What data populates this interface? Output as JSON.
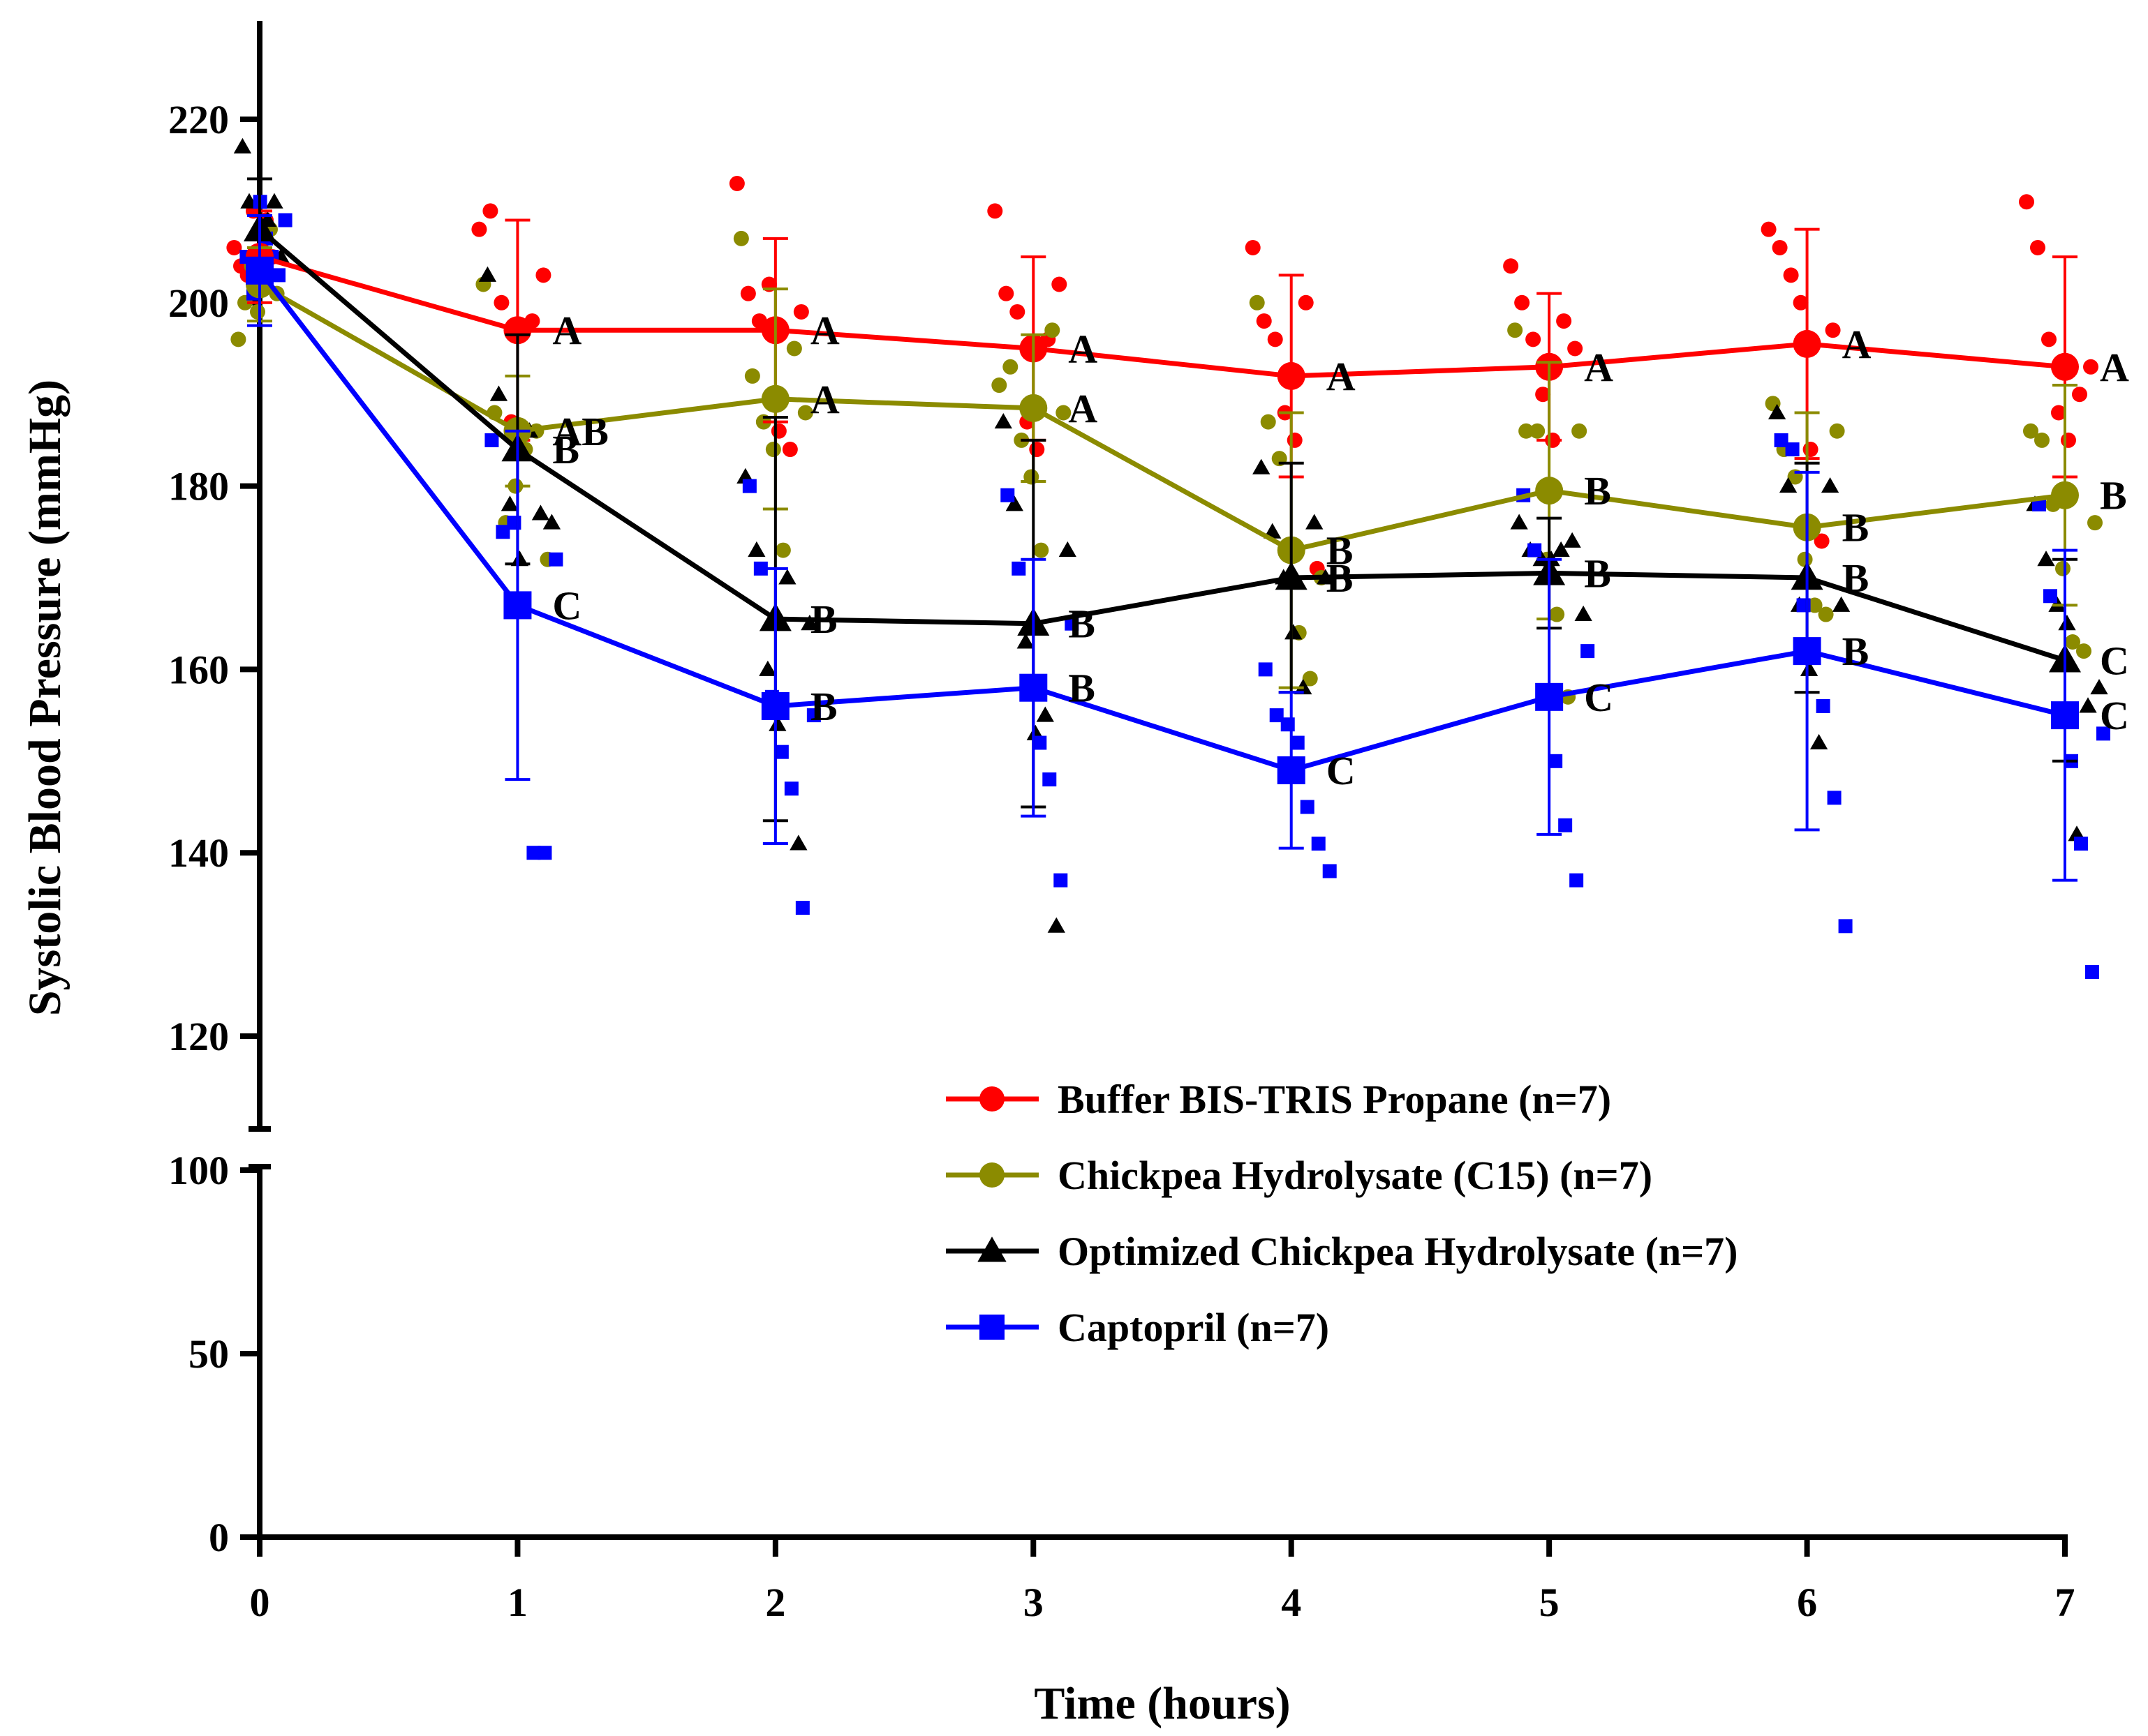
{
  "chart_data": {
    "type": "line",
    "xlabel": "Time (hours)",
    "ylabel": "Systolic Blood Pressure (mmHg)",
    "x": [
      0,
      1,
      2,
      3,
      4,
      5,
      6,
      7
    ],
    "xlim": [
      0,
      7
    ],
    "ylim_lower": [
      0,
      100
    ],
    "ylim_upper": [
      110,
      230
    ],
    "yticks_lower": [
      0,
      50,
      100
    ],
    "yticks_upper": [
      120,
      140,
      160,
      180,
      200,
      220
    ],
    "axis_break": true,
    "legend_position": "bottom-right",
    "series": [
      {
        "name": "Buffer BIS-TRIS Propane (n=7)",
        "color": "#ff0000",
        "marker": "circle",
        "values": [
          205,
          197,
          197,
          195,
          192,
          193,
          195.5,
          193
        ],
        "errors": [
          5,
          12,
          10,
          10,
          11,
          8,
          12.5,
          12
        ],
        "letters": [
          "",
          "A",
          "A",
          "A",
          "A",
          "A",
          "A",
          "A"
        ],
        "scatter": [
          [
            206,
            204,
            203,
            210,
            202,
            209,
            205
          ],
          [
            208,
            210,
            200,
            187,
            184,
            198,
            203
          ],
          [
            213,
            201,
            198,
            202,
            186,
            184,
            199
          ],
          [
            210,
            201,
            199,
            187,
            184,
            196,
            202
          ],
          [
            206,
            198,
            196,
            188,
            185,
            200,
            171
          ],
          [
            204,
            200,
            196,
            190,
            185,
            198,
            195
          ],
          [
            208,
            206,
            203,
            200,
            184,
            174,
            197
          ],
          [
            211,
            206,
            196,
            188,
            185,
            190,
            193
          ]
        ]
      },
      {
        "name": "Chickpea Hydrolysate (C15) (n=7)",
        "color": "#8b8b00",
        "marker": "circle",
        "values": [
          202,
          186,
          189.5,
          188.5,
          173,
          179.5,
          175.5,
          179
        ],
        "errors": [
          4,
          6,
          12,
          8,
          15,
          14,
          12.5,
          12
        ],
        "letters": [
          "",
          "AB",
          "A",
          "A",
          "B",
          "B",
          "B",
          "B"
        ],
        "scatter": [
          [
            196,
            200,
            204,
            199,
            203,
            208,
            201
          ],
          [
            202,
            188,
            176,
            180,
            184,
            186,
            172
          ],
          [
            207,
            192,
            187,
            184,
            173,
            195,
            188
          ],
          [
            191,
            193,
            185,
            181,
            173,
            197,
            188
          ],
          [
            200,
            187,
            183,
            173,
            164,
            159,
            170
          ],
          [
            197,
            186,
            186,
            172,
            166,
            157,
            186
          ],
          [
            189,
            184,
            181,
            172,
            167,
            166,
            186
          ],
          [
            186,
            185,
            178,
            171,
            163,
            162,
            176
          ]
        ]
      },
      {
        "name": "Optimized Chickpea Hydrolysate (n=7)",
        "color": "#000000",
        "marker": "triangle",
        "values": [
          208,
          184,
          165.5,
          165,
          170,
          170.5,
          170,
          161
        ],
        "errors": [
          5.5,
          12.5,
          22,
          20,
          12.5,
          6,
          12.5,
          11
        ],
        "letters": [
          "",
          "B",
          "B",
          "B",
          "B",
          "B",
          "B",
          "C"
        ],
        "scatter": [
          [
            217,
            211,
            205,
            203,
            209,
            211,
            205
          ],
          [
            203,
            190,
            178,
            172,
            186,
            177,
            176
          ],
          [
            181,
            173,
            160,
            154,
            170,
            141,
            165
          ],
          [
            187,
            178,
            163,
            153,
            155,
            132,
            173
          ],
          [
            182,
            175,
            170,
            164,
            158,
            176,
            170
          ],
          [
            176,
            173,
            172,
            172,
            173,
            174,
            166
          ],
          [
            188,
            180,
            167,
            160,
            152,
            180,
            167
          ],
          [
            178,
            172,
            167,
            165,
            142,
            156,
            158
          ]
        ]
      },
      {
        "name": "Captopril (n=7)",
        "color": "#0000ff",
        "marker": "square",
        "values": [
          203.5,
          167,
          156,
          158,
          149,
          157,
          162,
          155
        ],
        "errors": [
          6,
          19,
          15,
          14,
          8.5,
          15,
          19.5,
          18
        ],
        "letters": [
          "",
          "C",
          "B",
          "B",
          "C",
          "C",
          "B",
          "C"
        ],
        "scatter": [
          [
            205,
            201,
            211,
            207,
            205,
            203,
            209
          ],
          [
            185,
            175,
            176,
            167,
            140,
            140,
            172
          ],
          [
            180,
            171,
            157,
            151,
            147,
            134,
            155
          ],
          [
            179,
            171,
            158,
            152,
            148,
            137,
            165
          ],
          [
            160,
            155,
            154,
            152,
            145,
            141,
            138
          ],
          [
            179,
            173,
            157,
            150,
            143,
            137,
            162
          ],
          [
            185,
            184,
            167,
            162,
            156,
            146,
            132
          ],
          [
            178,
            168,
            155,
            150,
            141,
            127,
            153
          ]
        ]
      }
    ]
  }
}
